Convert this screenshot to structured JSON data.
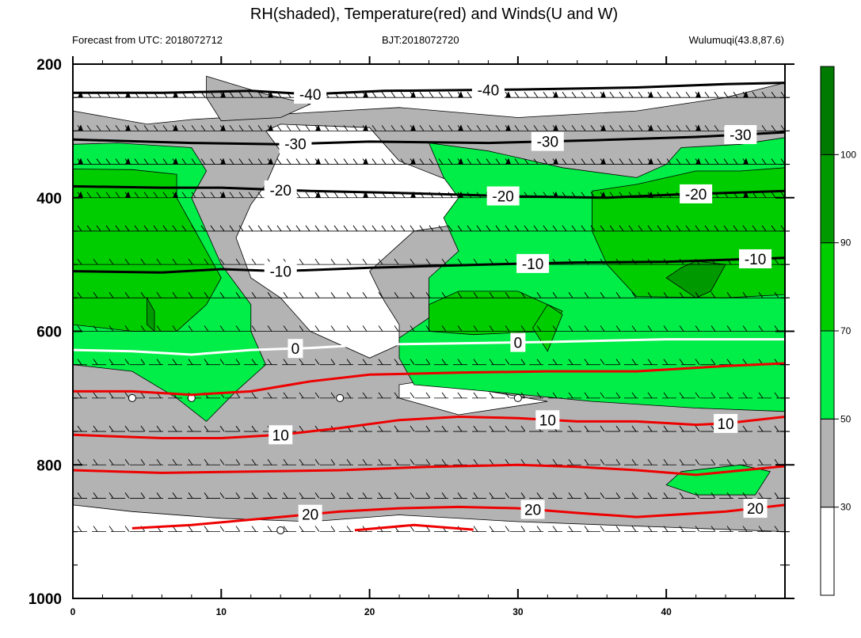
{
  "header": {
    "title": "RH(shaded), Temperature(red) and Winds(U and W)",
    "left_info": "Forecast from UTC: 2018072712",
    "center_info": "BJT:2018072720",
    "right_info": "Wulumuqi(43.8,87.6)"
  },
  "colors": {
    "background": "#ffffff",
    "rh_30_50": "#b3b3b3",
    "rh_50_70": "#00ee47",
    "rh_70_90": "#00cd00",
    "rh_90_100": "#009a00",
    "rh_100_plus": "#007a00",
    "temp_warm": "#ee0000",
    "temp_cold": "#000000",
    "temp_zero": "#ffffff"
  },
  "chart_data": {
    "type": "heatmap",
    "title": "RH(shaded), Temperature(red) and Winds(U and W)",
    "xlim": [
      0,
      48
    ],
    "ylim": [
      1000,
      200
    ],
    "x_ticks": [
      "0",
      "10",
      "20",
      "30",
      "40"
    ],
    "y_ticks": [
      "200",
      "400",
      "600",
      "800",
      "1000"
    ],
    "pressure_levels": [
      250,
      300,
      350,
      400,
      450,
      500,
      550,
      600,
      650,
      700,
      750,
      800,
      850,
      900
    ],
    "colorbar": {
      "labels": [
        "30",
        "50",
        "70",
        "90",
        "100"
      ],
      "colors": [
        "#ffffff",
        "#b3b3b3",
        "#00ee47",
        "#00cd00",
        "#009a00",
        "#007a00"
      ]
    },
    "rh_regions": [
      {
        "level": "30-50",
        "color": "#b3b3b3",
        "points": [
          [
            0,
            270
          ],
          [
            5,
            290
          ],
          [
            8,
            283
          ],
          [
            14,
            275
          ],
          [
            22,
            265
          ],
          [
            30,
            280
          ],
          [
            38,
            270
          ],
          [
            44,
            250
          ],
          [
            48,
            228
          ],
          [
            48,
            900
          ],
          [
            42,
            895
          ],
          [
            30,
            885
          ],
          [
            22,
            875
          ],
          [
            16,
            885
          ],
          [
            10,
            880
          ],
          [
            4,
            870
          ],
          [
            0,
            860
          ]
        ]
      },
      {
        "level": "30-50",
        "color": "#b3b3b3",
        "points": [
          [
            9,
            218
          ],
          [
            13,
            245
          ],
          [
            16,
            260
          ],
          [
            14,
            280
          ],
          [
            10,
            285
          ],
          [
            9,
            250
          ]
        ]
      },
      {
        "level": "below-30",
        "color": "#ffffff",
        "points": [
          [
            14,
            290
          ],
          [
            20,
            295
          ],
          [
            21,
            320
          ],
          [
            22,
            345
          ],
          [
            26,
            380
          ],
          [
            28,
            420
          ],
          [
            26,
            440
          ],
          [
            23,
            450
          ],
          [
            22,
            470
          ],
          [
            20,
            510
          ],
          [
            21,
            555
          ],
          [
            22,
            590
          ],
          [
            22,
            620
          ],
          [
            20,
            640
          ],
          [
            16,
            600
          ],
          [
            14,
            550
          ],
          [
            12,
            520
          ],
          [
            11,
            460
          ],
          [
            12,
            410
          ],
          [
            13,
            380
          ],
          [
            14,
            330
          ],
          [
            13,
            300
          ]
        ]
      },
      {
        "level": "below-30",
        "color": "#ffffff",
        "points": [
          [
            22,
            680
          ],
          [
            25,
            670
          ],
          [
            28,
            690
          ],
          [
            32,
            705
          ],
          [
            26,
            725
          ],
          [
            22,
            700
          ]
        ]
      },
      {
        "level": "50-70",
        "color": "#00ee47",
        "points": [
          [
            0,
            320
          ],
          [
            3,
            318
          ],
          [
            8,
            325
          ],
          [
            9,
            360
          ],
          [
            8,
            400
          ],
          [
            9,
            450
          ],
          [
            10,
            500
          ],
          [
            12,
            560
          ],
          [
            12,
            600
          ],
          [
            13,
            650
          ],
          [
            11,
            690
          ],
          [
            9,
            735
          ],
          [
            7,
            700
          ],
          [
            4,
            660
          ],
          [
            0,
            650
          ]
        ]
      },
      {
        "level": "50-70",
        "color": "#00ee47",
        "points": [
          [
            24,
            318
          ],
          [
            28,
            330
          ],
          [
            33,
            355
          ],
          [
            38,
            370
          ],
          [
            40,
            350
          ],
          [
            41,
            325
          ],
          [
            45,
            320
          ],
          [
            48,
            310
          ],
          [
            48,
            720
          ],
          [
            42,
            715
          ],
          [
            35,
            705
          ],
          [
            28,
            690
          ],
          [
            23,
            680
          ],
          [
            22,
            640
          ],
          [
            22,
            610
          ],
          [
            24,
            580
          ],
          [
            24,
            520
          ],
          [
            26,
            480
          ],
          [
            25,
            430
          ],
          [
            26,
            400
          ],
          [
            25,
            370
          ]
        ]
      },
      {
        "level": "50-70",
        "color": "#00ee47",
        "points": [
          [
            41,
            810
          ],
          [
            45,
            800
          ],
          [
            47,
            810
          ],
          [
            46,
            845
          ],
          [
            42,
            845
          ],
          [
            40,
            830
          ]
        ]
      },
      {
        "level": "70-90",
        "color": "#00cd00",
        "points": [
          [
            0,
            357
          ],
          [
            4,
            358
          ],
          [
            7,
            365
          ],
          [
            7,
            400
          ],
          [
            8,
            440
          ],
          [
            9,
            480
          ],
          [
            10,
            520
          ],
          [
            9,
            560
          ],
          [
            7,
            600
          ],
          [
            4,
            600
          ],
          [
            0,
            590
          ]
        ]
      },
      {
        "level": "70-90",
        "color": "#00cd00",
        "points": [
          [
            35,
            390
          ],
          [
            38,
            380
          ],
          [
            42,
            360
          ],
          [
            45,
            360
          ],
          [
            48,
            355
          ],
          [
            48,
            545
          ],
          [
            44,
            550
          ],
          [
            38,
            548
          ],
          [
            36,
            500
          ],
          [
            35,
            450
          ]
        ]
      },
      {
        "level": "70-90",
        "color": "#00cd00",
        "points": [
          [
            24,
            560
          ],
          [
            26,
            540
          ],
          [
            30,
            540
          ],
          [
            33,
            570
          ],
          [
            32,
            600
          ],
          [
            27,
            605
          ],
          [
            24,
            600
          ]
        ]
      },
      {
        "level": "70-90",
        "color": "#00cd00",
        "points": [
          [
            31,
            595
          ],
          [
            32,
            560
          ],
          [
            33,
            575
          ],
          [
            32,
            630
          ]
        ]
      },
      {
        "level": "90-100",
        "color": "#009a00",
        "points": [
          [
            5,
            560
          ],
          [
            5,
            590
          ],
          [
            5.5,
            600
          ],
          [
            5.5,
            570
          ],
          [
            5,
            550
          ]
        ]
      },
      {
        "level": "90-100",
        "color": "#009a00",
        "points": [
          [
            41,
            505
          ],
          [
            42,
            495
          ],
          [
            44,
            500
          ],
          [
            43,
            540
          ],
          [
            42,
            550
          ],
          [
            40,
            520
          ]
        ]
      }
    ],
    "temperature_contours": [
      {
        "value": -40,
        "color": "#000000",
        "points": [
          [
            0,
            243
          ],
          [
            6,
            243
          ],
          [
            12,
            240
          ],
          [
            16,
            245
          ],
          [
            21,
            240
          ],
          [
            30,
            238
          ],
          [
            38,
            235
          ],
          [
            44,
            230
          ],
          [
            48,
            228
          ]
        ],
        "label_x": [
          16,
          28
        ]
      },
      {
        "value": -30,
        "color": "#000000",
        "points": [
          [
            0,
            313
          ],
          [
            8,
            318
          ],
          [
            14,
            320
          ],
          [
            20,
            316
          ],
          [
            28,
            318
          ],
          [
            35,
            314
          ],
          [
            42,
            309
          ],
          [
            48,
            302
          ]
        ],
        "label_x": [
          15,
          32,
          45
        ]
      },
      {
        "value": -20,
        "color": "#000000",
        "points": [
          [
            0,
            383
          ],
          [
            6,
            385
          ],
          [
            10,
            385
          ],
          [
            16,
            390
          ],
          [
            22,
            393
          ],
          [
            30,
            398
          ],
          [
            36,
            400
          ],
          [
            41,
            395
          ],
          [
            48,
            390
          ]
        ],
        "label_x": [
          14,
          29,
          42
        ]
      },
      {
        "value": -10,
        "color": "#000000",
        "points": [
          [
            0,
            510
          ],
          [
            6,
            512
          ],
          [
            10,
            507
          ],
          [
            14,
            510
          ],
          [
            20,
            505
          ],
          [
            28,
            500
          ],
          [
            34,
            497
          ],
          [
            40,
            496
          ],
          [
            48,
            490
          ]
        ],
        "label_x": [
          14,
          31,
          46
        ]
      },
      {
        "value": 0,
        "color": "#ffffff",
        "points": [
          [
            0,
            628
          ],
          [
            4,
            630
          ],
          [
            8,
            635
          ],
          [
            12,
            628
          ],
          [
            16,
            625
          ],
          [
            20,
            620
          ],
          [
            26,
            618
          ],
          [
            32,
            616
          ],
          [
            40,
            612
          ],
          [
            48,
            612
          ]
        ],
        "label_x": [
          15,
          30
        ]
      },
      {
        "value": 10,
        "color": "#ee0000",
        "points": [
          [
            0,
            690
          ],
          [
            4,
            690
          ],
          [
            8,
            695
          ],
          [
            12,
            690
          ],
          [
            16,
            675
          ],
          [
            20,
            665
          ],
          [
            26,
            662
          ],
          [
            32,
            660
          ],
          [
            38,
            660
          ],
          [
            44,
            652
          ],
          [
            48,
            648
          ]
        ],
        "label_x": []
      },
      {
        "value": 10,
        "color": "#ee0000",
        "points": [
          [
            0,
            755
          ],
          [
            6,
            760
          ],
          [
            10,
            760
          ],
          [
            14,
            755
          ],
          [
            18,
            745
          ],
          [
            22,
            733
          ],
          [
            26,
            728
          ],
          [
            30,
            730
          ],
          [
            34,
            735
          ],
          [
            38,
            735
          ],
          [
            42,
            740
          ],
          [
            44,
            738
          ],
          [
            48,
            728
          ]
        ],
        "label_x": [
          14,
          32,
          44
        ]
      },
      {
        "value": 20,
        "color": "#ee0000",
        "points": [
          [
            0,
            808
          ],
          [
            3,
            810
          ],
          [
            6,
            812
          ],
          [
            12,
            810
          ],
          [
            18,
            808
          ],
          [
            24,
            803
          ],
          [
            30,
            800
          ],
          [
            34,
            803
          ],
          [
            38,
            808
          ],
          [
            42,
            815
          ],
          [
            48,
            802
          ]
        ],
        "label_x": []
      },
      {
        "value": 20,
        "color": "#ee0000",
        "points": [
          [
            4,
            895
          ],
          [
            8,
            890
          ],
          [
            14,
            878
          ],
          [
            18,
            870
          ],
          [
            22,
            865
          ],
          [
            26,
            863
          ],
          [
            30,
            865
          ],
          [
            34,
            872
          ],
          [
            38,
            878
          ],
          [
            44,
            870
          ],
          [
            48,
            860
          ]
        ],
        "label_x": [
          16,
          31,
          46
        ]
      },
      {
        "value": 20,
        "color": "#ee0000",
        "points": [
          [
            19,
            898
          ],
          [
            23,
            890
          ],
          [
            27,
            897
          ]
        ],
        "label_x": []
      }
    ],
    "calm_points": [
      [
        4,
        700
      ],
      [
        8,
        700
      ],
      [
        18,
        700
      ],
      [
        30,
        700
      ],
      [
        14,
        898
      ]
    ],
    "wind_rows": [
      250,
      300,
      350,
      400,
      450,
      500,
      550,
      600,
      650,
      700,
      750,
      800,
      850,
      900
    ]
  }
}
